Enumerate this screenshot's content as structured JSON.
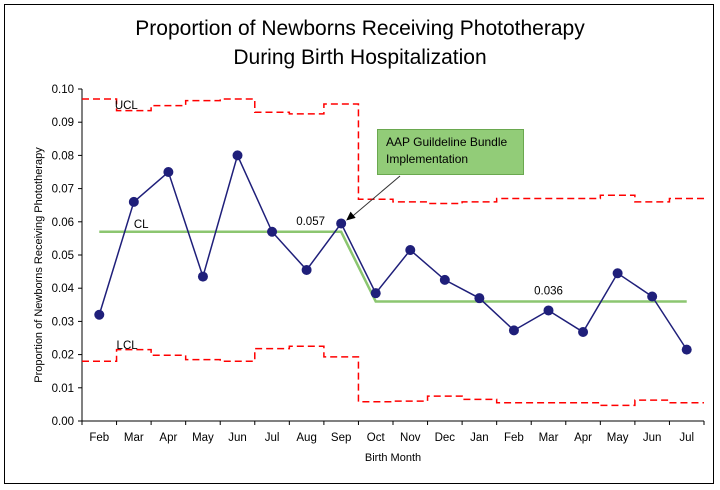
{
  "chart_data": {
    "type": "line",
    "title_line1": "Proportion of Newborns Receiving Phototherapy",
    "title_line2": "During Birth Hospitalization",
    "xlabel": "Birth Month",
    "ylabel": "Proportion of Newborns Receiving Phototherapy",
    "categories": [
      "Feb",
      "Mar",
      "Apr",
      "May",
      "Jun",
      "Jul",
      "Aug",
      "Sep",
      "Oct",
      "Nov",
      "Dec",
      "Jan",
      "Feb",
      "Mar",
      "Apr",
      "May",
      "Jun",
      "Jul"
    ],
    "ylim": [
      0,
      0.1
    ],
    "yticks": [
      "0.00",
      "0.01",
      "0.02",
      "0.03",
      "0.04",
      "0.05",
      "0.06",
      "0.07",
      "0.08",
      "0.09",
      "0.10"
    ],
    "grid": false,
    "series": [
      {
        "values": [
          0.032,
          0.066,
          0.075,
          0.0435,
          0.08,
          0.057,
          0.0455,
          0.0595,
          0.0385,
          0.0515,
          0.0425,
          0.037,
          0.0273,
          0.0333,
          0.0268,
          0.0445,
          0.0375,
          0.0215
        ],
        "color": "#1f1f7a"
      }
    ],
    "ucl": [
      0.097,
      0.0935,
      0.095,
      0.0965,
      0.097,
      0.093,
      0.0925,
      0.0955,
      0.0668,
      0.066,
      0.0655,
      0.066,
      0.067,
      0.067,
      0.067,
      0.068,
      0.066,
      0.067
    ],
    "lcl": [
      0.018,
      0.0215,
      0.0198,
      0.0185,
      0.018,
      0.0218,
      0.0225,
      0.0193,
      0.0058,
      0.006,
      0.0075,
      0.0065,
      0.0055,
      0.0055,
      0.0055,
      0.0047,
      0.0063,
      0.0055
    ],
    "center_line": [
      {
        "from": 0,
        "to": 7,
        "value": 0.057
      },
      {
        "from": 8,
        "to": 17,
        "value": 0.036
      }
    ],
    "labels": {
      "ucl": "UCL",
      "cl": "CL",
      "lcl": "LCL",
      "cl1_value": "0.057",
      "cl2_value": "0.036"
    },
    "annotation": {
      "line1": "AAP Guildeline Bundle",
      "line2": "Implementation"
    },
    "colors": {
      "data": "#1f1f7a",
      "limits": "#ff0000",
      "center": "#8cc670",
      "callout_fill": "#92cc78"
    }
  }
}
